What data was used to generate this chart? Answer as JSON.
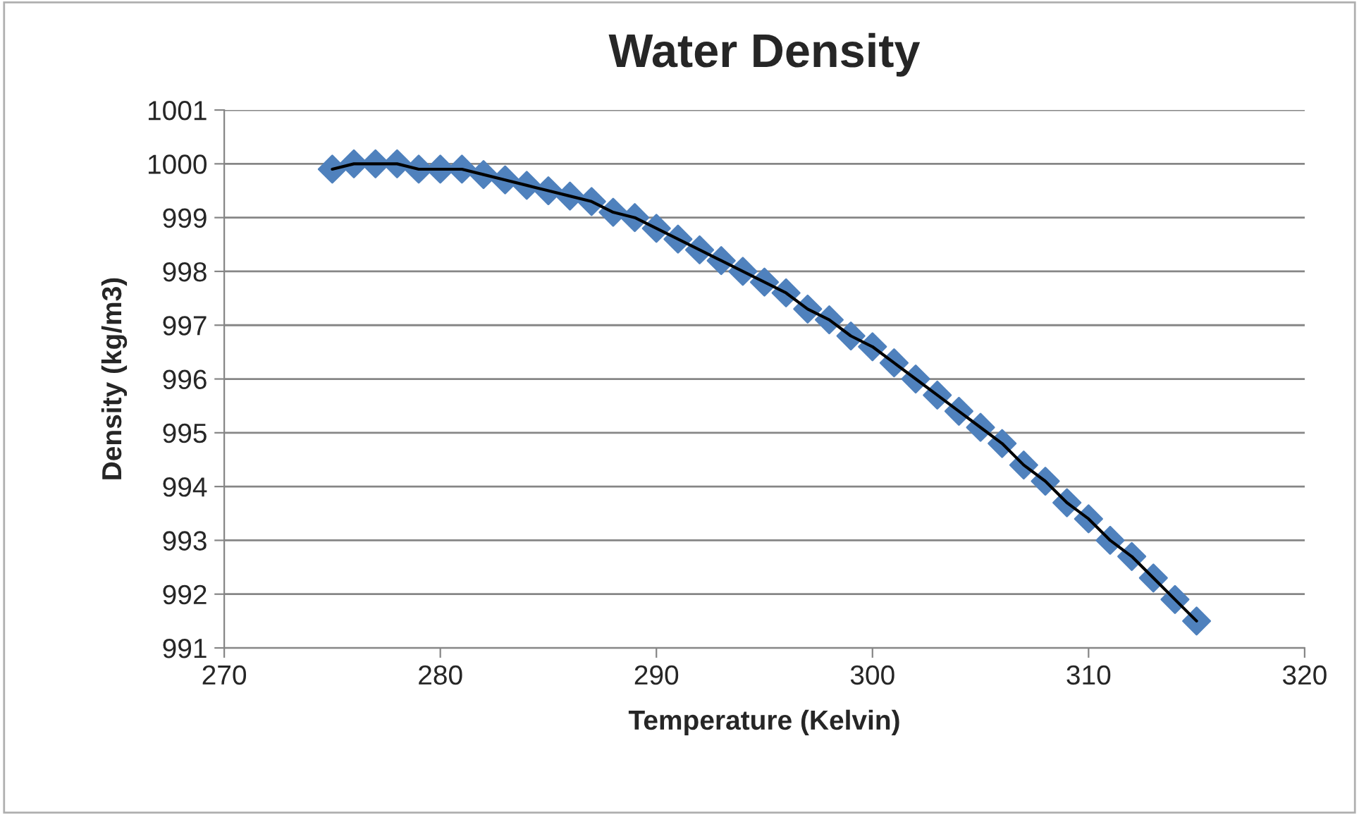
{
  "chart_data": {
    "type": "scatter",
    "title": "Water Density",
    "xlabel": "Temperature (Kelvin)",
    "ylabel": "Density (kg/m3)",
    "x": [
      275,
      276,
      277,
      278,
      279,
      280,
      281,
      282,
      283,
      284,
      285,
      286,
      287,
      288,
      289,
      290,
      291,
      292,
      293,
      294,
      295,
      296,
      297,
      298,
      299,
      300,
      301,
      302,
      303,
      304,
      305,
      306,
      307,
      308,
      309,
      310,
      311,
      312,
      313,
      314,
      315
    ],
    "series": [
      {
        "color": "#4f81bd",
        "marker": "diamond",
        "values": [
          999.9,
          1000.0,
          1000.0,
          1000.0,
          999.9,
          999.9,
          999.9,
          999.8,
          999.7,
          999.6,
          999.5,
          999.4,
          999.3,
          999.1,
          999.0,
          998.8,
          998.6,
          998.4,
          998.2,
          998.0,
          997.8,
          997.6,
          997.3,
          997.1,
          996.8,
          996.6,
          996.3,
          996.0,
          995.7,
          995.4,
          995.1,
          994.8,
          994.4,
          994.1,
          993.7,
          993.4,
          993.0,
          992.7,
          992.3,
          991.9,
          991.5
        ]
      },
      {
        "type": "line",
        "color": "#000000",
        "line_style": "solid",
        "values": [
          999.9,
          1000.0,
          1000.0,
          1000.0,
          999.9,
          999.9,
          999.9,
          999.8,
          999.7,
          999.6,
          999.5,
          999.4,
          999.3,
          999.1,
          999.0,
          998.8,
          998.6,
          998.4,
          998.2,
          998.0,
          997.8,
          997.6,
          997.3,
          997.1,
          996.8,
          996.6,
          996.3,
          996.0,
          995.7,
          995.4,
          995.1,
          994.8,
          994.4,
          994.1,
          993.7,
          993.4,
          993.0,
          992.7,
          992.3,
          991.9,
          991.5
        ]
      }
    ],
    "xlim": [
      270,
      320
    ],
    "xticks": [
      270,
      280,
      290,
      300,
      310,
      320
    ],
    "ylim": [
      991,
      1001
    ],
    "yticks": [
      991,
      992,
      993,
      994,
      995,
      996,
      997,
      998,
      999,
      1000,
      1001
    ],
    "grid": "y",
    "legend": false
  }
}
